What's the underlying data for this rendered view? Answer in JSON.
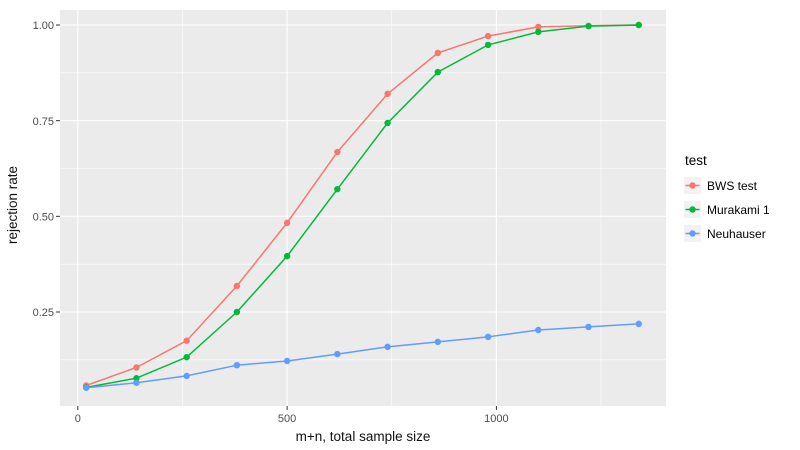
{
  "figure": {
    "background": "#FFFFFF",
    "panel_background": "#EBEBEB",
    "grid_color": "#FFFFFF",
    "tick_mark_color": "#333333",
    "tick_label_color": "#4D4D4D",
    "legend_key_background": "#F2F2F2"
  },
  "chart_data": {
    "type": "line",
    "title": "",
    "xlabel": "m+n, total sample size",
    "ylabel": "rejection rate",
    "x": [
      20,
      140,
      260,
      380,
      500,
      620,
      740,
      860,
      980,
      1100,
      1220,
      1340
    ],
    "series": [
      {
        "name": "BWS test",
        "color": "#F8766D",
        "values": [
          0.058,
          0.105,
          0.175,
          0.318,
          0.483,
          0.668,
          0.82,
          0.927,
          0.971,
          0.995,
          0.998,
          1.0
        ]
      },
      {
        "name": "Murakami 1",
        "color": "#00BA38",
        "values": [
          0.053,
          0.077,
          0.132,
          0.25,
          0.396,
          0.571,
          0.744,
          0.877,
          0.948,
          0.982,
          0.997,
          1.0
        ]
      },
      {
        "name": "Neuhauser",
        "color": "#619CFF",
        "values": [
          0.052,
          0.065,
          0.083,
          0.111,
          0.122,
          0.14,
          0.159,
          0.172,
          0.185,
          0.203,
          0.211,
          0.219
        ]
      }
    ],
    "x_ticks": {
      "labels": [
        "0",
        "500",
        "1000"
      ],
      "values": [
        0,
        500,
        1000
      ]
    },
    "y_ticks": {
      "labels": [
        "1.00",
        "0.75",
        "0.50",
        "0.25"
      ],
      "values": [
        1.0,
        0.75,
        0.5,
        0.25
      ]
    },
    "xlim": [
      -43,
      1400
    ],
    "ylim": [
      0.004,
      1.039
    ],
    "grid": true,
    "legend": {
      "title": "test",
      "position": "right"
    }
  }
}
